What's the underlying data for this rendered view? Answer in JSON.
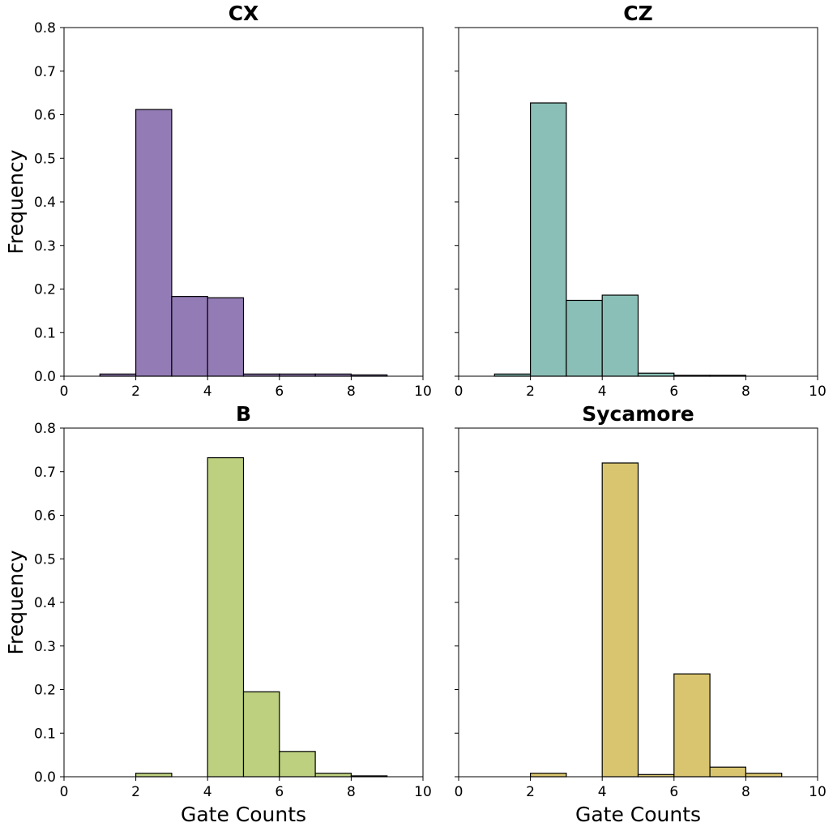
{
  "chart_data": [
    {
      "type": "bar",
      "title": "CX",
      "xlabel": "",
      "ylabel": "Frequency",
      "xlim": [
        0,
        10
      ],
      "ylim": [
        0,
        0.8
      ],
      "xticks": [
        "0",
        "2",
        "4",
        "6",
        "8",
        "10"
      ],
      "yticks": [
        "0.0",
        "0.1",
        "0.2",
        "0.3",
        "0.4",
        "0.5",
        "0.6",
        "0.7",
        "0.8"
      ],
      "show_yticklabels": true,
      "color": "#937cb5",
      "bins": [
        [
          1,
          2
        ],
        [
          2,
          3
        ],
        [
          3,
          4
        ],
        [
          4,
          5
        ],
        [
          5,
          6
        ],
        [
          6,
          7
        ],
        [
          7,
          8
        ],
        [
          8,
          9
        ]
      ],
      "values": [
        0.005,
        0.612,
        0.183,
        0.18,
        0.005,
        0.005,
        0.005,
        0.003
      ]
    },
    {
      "type": "bar",
      "title": "CZ",
      "xlabel": "",
      "ylabel": "",
      "xlim": [
        0,
        10
      ],
      "ylim": [
        0,
        0.8
      ],
      "xticks": [
        "0",
        "2",
        "4",
        "6",
        "8",
        "10"
      ],
      "yticks": [
        "0.0",
        "0.1",
        "0.2",
        "0.3",
        "0.4",
        "0.5",
        "0.6",
        "0.7",
        "0.8"
      ],
      "show_yticklabels": false,
      "color": "#8abfb7",
      "bins": [
        [
          1,
          2
        ],
        [
          2,
          3
        ],
        [
          3,
          4
        ],
        [
          4,
          5
        ],
        [
          5,
          6
        ],
        [
          6,
          7
        ],
        [
          7,
          8
        ]
      ],
      "values": [
        0.005,
        0.627,
        0.174,
        0.186,
        0.007,
        0.002,
        0.002
      ]
    },
    {
      "type": "bar",
      "title": "B",
      "xlabel": "Gate Counts",
      "ylabel": "Frequency",
      "xlim": [
        0,
        10
      ],
      "ylim": [
        0,
        0.8
      ],
      "xticks": [
        "0",
        "2",
        "4",
        "6",
        "8",
        "10"
      ],
      "yticks": [
        "0.0",
        "0.1",
        "0.2",
        "0.3",
        "0.4",
        "0.5",
        "0.6",
        "0.7",
        "0.8"
      ],
      "show_yticklabels": true,
      "color": "#bdd07f",
      "bins": [
        [
          2,
          3
        ],
        [
          3,
          4
        ],
        [
          4,
          5
        ],
        [
          5,
          6
        ],
        [
          6,
          7
        ],
        [
          7,
          8
        ],
        [
          8,
          9
        ]
      ],
      "values": [
        0.008,
        0,
        0.732,
        0.195,
        0.058,
        0.008,
        0.002
      ]
    },
    {
      "type": "bar",
      "title": "Sycamore",
      "xlabel": "Gate Counts",
      "ylabel": "",
      "xlim": [
        0,
        10
      ],
      "ylim": [
        0,
        0.8
      ],
      "xticks": [
        "0",
        "2",
        "4",
        "6",
        "8",
        "10"
      ],
      "yticks": [
        "0.0",
        "0.1",
        "0.2",
        "0.3",
        "0.4",
        "0.5",
        "0.6",
        "0.7",
        "0.8"
      ],
      "show_yticklabels": false,
      "color": "#d9c56f",
      "bins": [
        [
          2,
          3
        ],
        [
          3,
          4
        ],
        [
          4,
          5
        ],
        [
          5,
          6
        ],
        [
          6,
          7
        ],
        [
          7,
          8
        ],
        [
          8,
          9
        ]
      ],
      "values": [
        0.008,
        0,
        0.72,
        0.005,
        0.236,
        0.022,
        0.008
      ]
    }
  ]
}
